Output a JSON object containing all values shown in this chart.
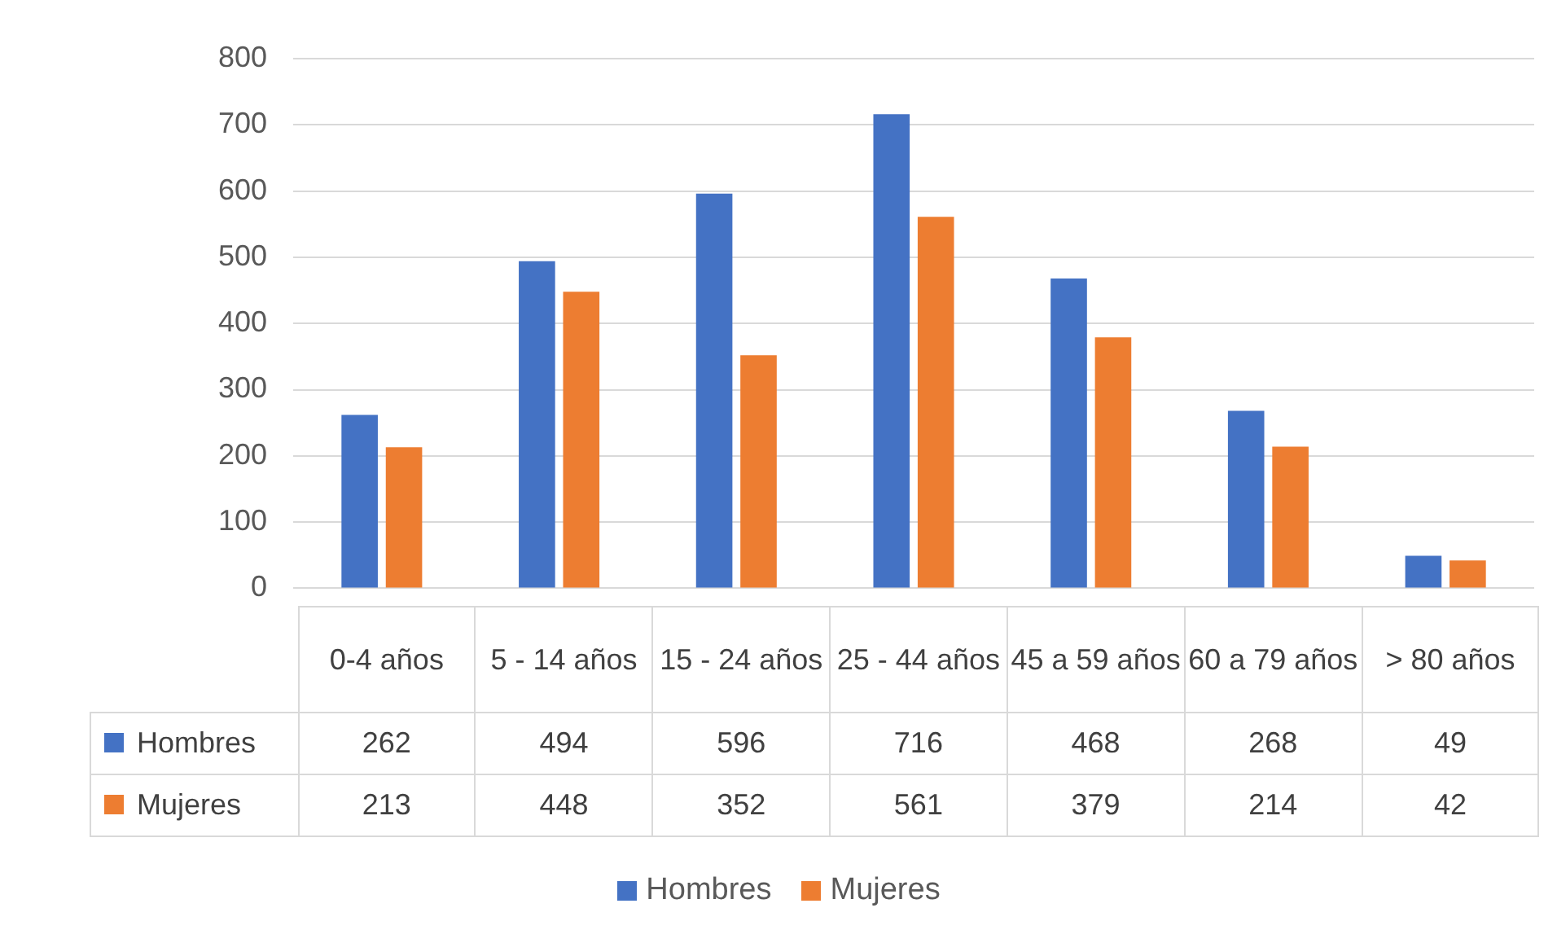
{
  "chart_data": {
    "type": "bar",
    "categories": [
      "0-4 años",
      "5 - 14 años",
      "15 - 24 años",
      "25 - 44 años",
      "45 a 59 años",
      "60 a 79 años",
      "> 80 años"
    ],
    "series": [
      {
        "name": "Hombres",
        "color": "#4472c4",
        "values": [
          262,
          494,
          596,
          716,
          468,
          268,
          49
        ]
      },
      {
        "name": "Mujeres",
        "color": "#ed7d31",
        "values": [
          213,
          448,
          352,
          561,
          379,
          214,
          42
        ]
      }
    ],
    "ylim": [
      0,
      800
    ],
    "yticks": [
      0,
      100,
      200,
      300,
      400,
      500,
      600,
      700,
      800
    ],
    "grid": "y",
    "legend": "bottom",
    "data_labels": true
  }
}
